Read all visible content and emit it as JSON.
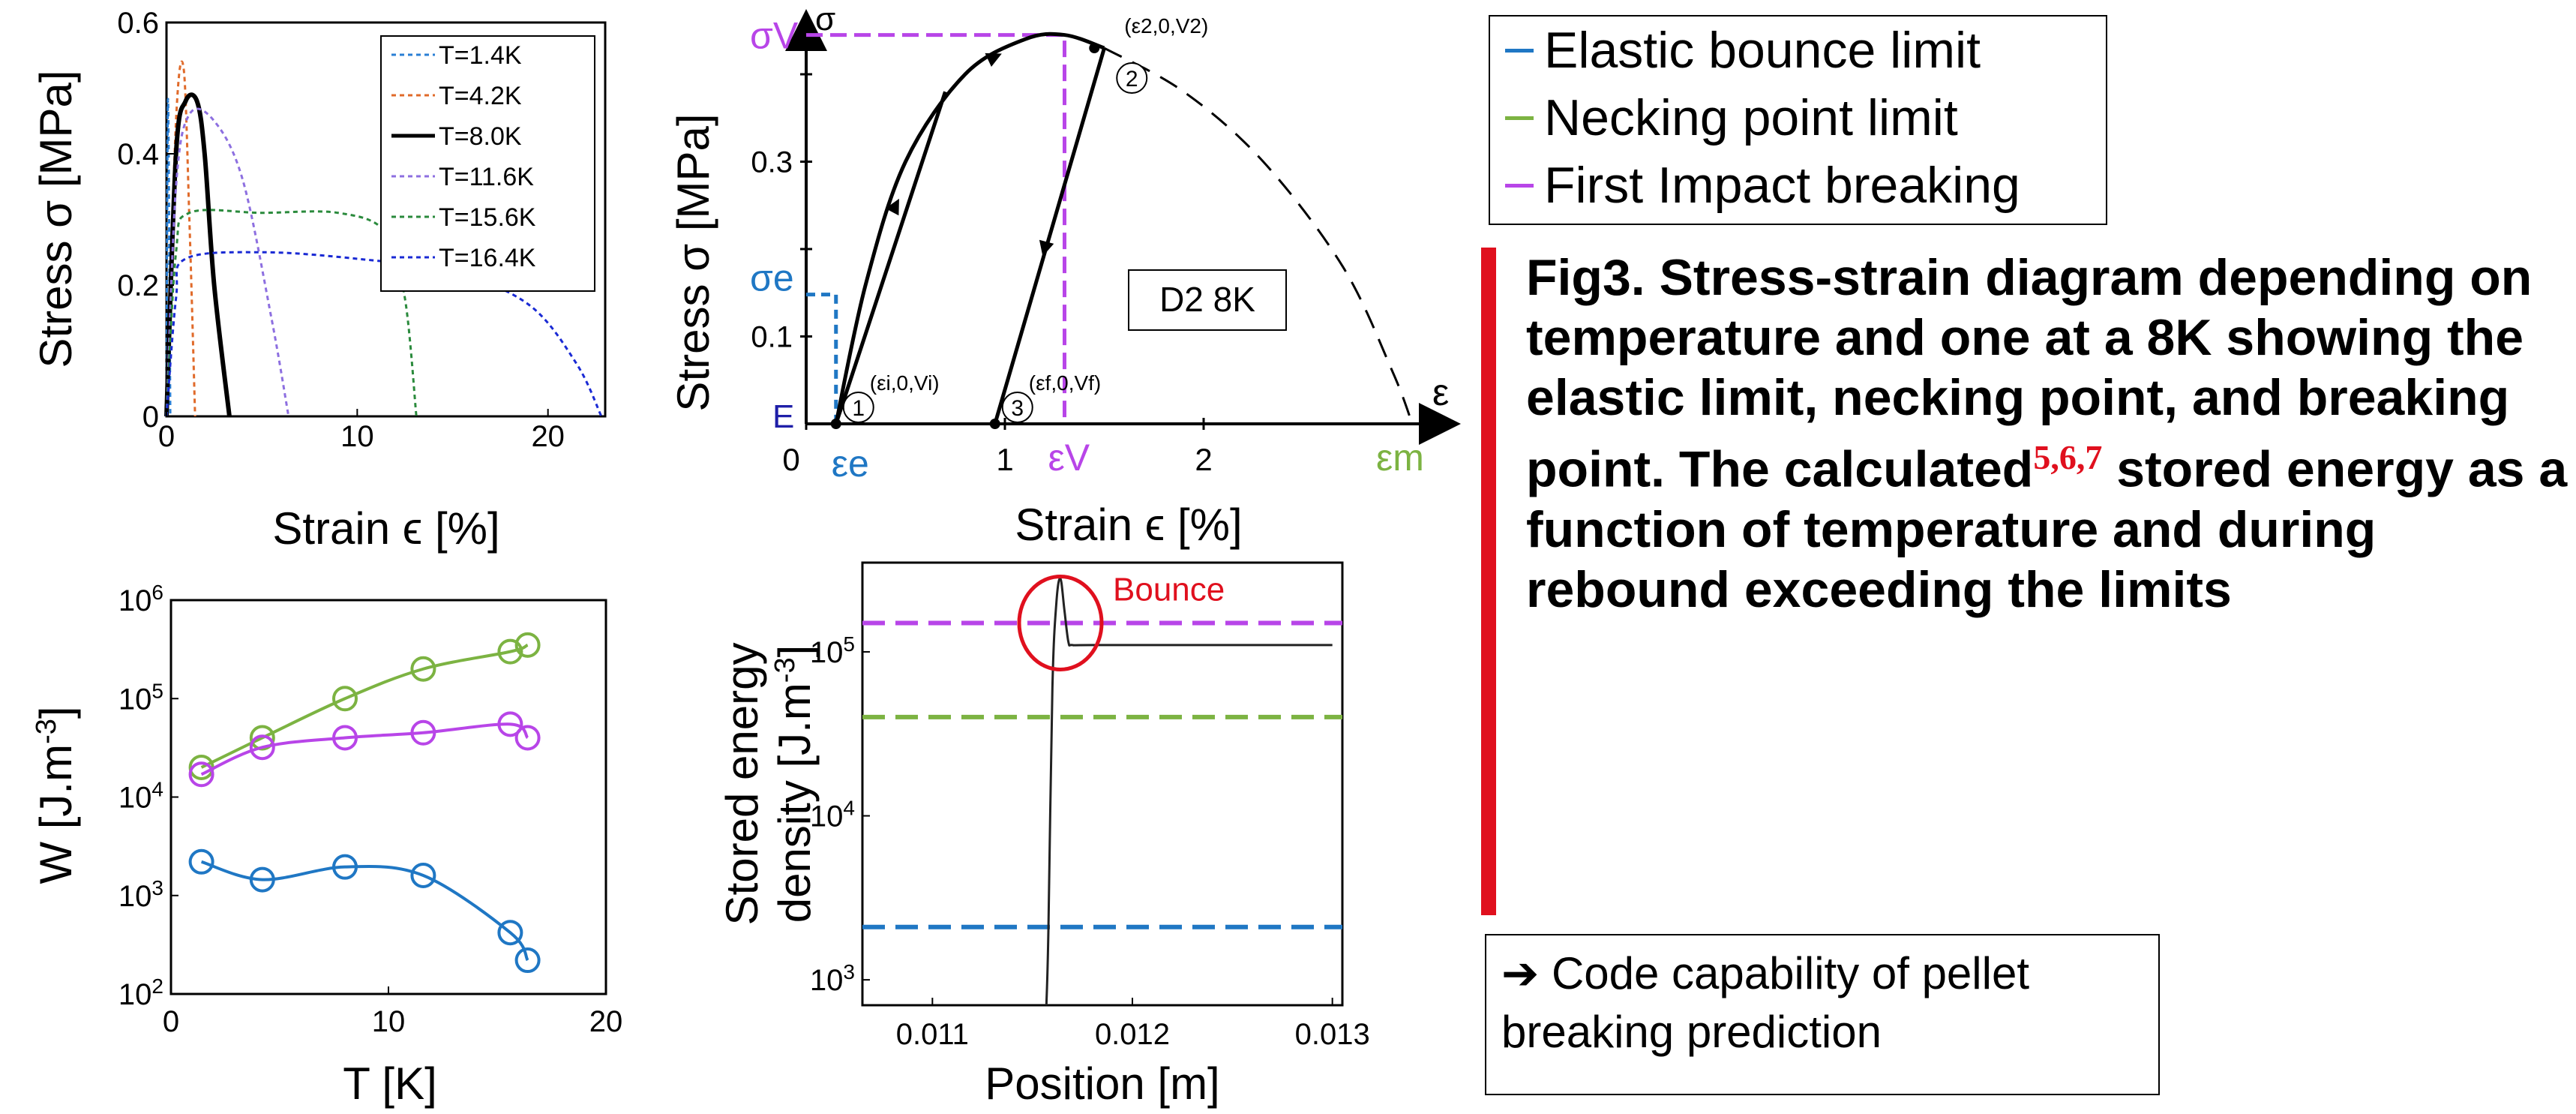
{
  "chart_data": [
    {
      "id": "stress_strain_temperature",
      "type": "line",
      "xlabel": "Strain ϵ [%]",
      "ylabel": "Stress σ [MPa]",
      "xlim": [
        0,
        23
      ],
      "ylim": [
        0,
        0.6
      ],
      "xticks": [
        "0",
        "10",
        "20"
      ],
      "yticks": [
        "0",
        "0.2",
        "0.4",
        "0.6"
      ],
      "legend_position": "top-right",
      "series": [
        {
          "name": "T=1.4K",
          "color": "#2a7fd4",
          "style": "dotted",
          "x": [
            0,
            0.05,
            0.1,
            0.2
          ],
          "y": [
            0,
            0.4,
            0.45,
            0
          ]
        },
        {
          "name": "T=4.2K",
          "color": "#e06a2a",
          "style": "dotted",
          "x": [
            0,
            0.5,
            0.9,
            1.2,
            1.5
          ],
          "y": [
            0,
            0.45,
            0.53,
            0.3,
            0
          ]
        },
        {
          "name": "T=8.0K",
          "color": "#000000",
          "style": "solid",
          "x": [
            0,
            0.5,
            1.0,
            1.6,
            2.0,
            2.5,
            3.3
          ],
          "y": [
            0,
            0.4,
            0.48,
            0.48,
            0.4,
            0.2,
            0
          ]
        },
        {
          "name": "T=11.6K",
          "color": "#8d6fe0",
          "style": "dotted",
          "x": [
            0,
            0.5,
            1.2,
            2.5,
            4.0,
            5.5,
            6.4
          ],
          "y": [
            0,
            0.35,
            0.46,
            0.45,
            0.36,
            0.15,
            0
          ]
        },
        {
          "name": "T=15.6K",
          "color": "#2a8a3c",
          "style": "dotted",
          "x": [
            0,
            0.5,
            1.2,
            5.0,
            9.0,
            11.5,
            12.5,
            13.1
          ],
          "y": [
            0,
            0.25,
            0.31,
            0.31,
            0.31,
            0.28,
            0.18,
            0
          ]
        },
        {
          "name": "T=16.4K",
          "color": "#1a2ad4",
          "style": "dotted",
          "x": [
            0,
            0.5,
            1.0,
            5.0,
            10.0,
            15.0,
            19.0,
            21.5,
            22.8
          ],
          "y": [
            0,
            0.18,
            0.24,
            0.25,
            0.24,
            0.22,
            0.17,
            0.08,
            0
          ]
        }
      ]
    },
    {
      "id": "stress_strain_d2_8k",
      "type": "line",
      "annotation_box": "D2 8K",
      "xlabel": "Strain ϵ [%]",
      "ylabel": "Stress σ [MPa]",
      "xlim": [
        0,
        3.2
      ],
      "ylim": [
        0,
        0.46
      ],
      "xticks": [
        "0",
        "1",
        "2"
      ],
      "yticks": [
        "0.1",
        "0.3"
      ],
      "y_axis_name": "σ",
      "x_axis_name": "ε",
      "labels": {
        "sigma_v": "σV",
        "sigma_e": "σe",
        "E": "E",
        "eps_e": "εe",
        "eps_v": "εV",
        "eps_m": "εm",
        "origin": "0"
      },
      "points": [
        {
          "label": "(ε2,0,V2)",
          "id": "2",
          "x": 1.45,
          "y": 0.43
        },
        {
          "label": "(εi,0,Vi)",
          "id": "1",
          "x": 0.15,
          "y": 0.0
        },
        {
          "label": "(εf,0,Vf)",
          "id": "3",
          "x": 0.95,
          "y": 0.0
        }
      ],
      "envelope_curve": {
        "x": [
          0.15,
          0.3,
          0.5,
          0.8,
          1.1,
          1.3,
          1.5
        ],
        "y": [
          0.0,
          0.16,
          0.3,
          0.4,
          0.44,
          0.445,
          0.43
        ]
      },
      "loading_line": {
        "x": [
          0.15,
          0.7
        ],
        "y": [
          0.0,
          0.38
        ]
      },
      "unloading_line": {
        "x": [
          1.5,
          0.95
        ],
        "y": [
          0.43,
          0.0
        ]
      },
      "extrapolation_dashed": {
        "x": [
          1.5,
          1.9,
          2.3,
          2.7,
          2.95,
          3.05
        ],
        "y": [
          0.43,
          0.38,
          0.3,
          0.18,
          0.06,
          0.0
        ]
      },
      "sigma_v": 0.445,
      "sigma_e": 0.148,
      "eps_e": 0.15,
      "eps_v": 1.3
    },
    {
      "id": "W_vs_T",
      "type": "line",
      "xlabel": "T [K]",
      "ylabel": "W [J.m-3]",
      "xlim": [
        0,
        20
      ],
      "ylim": [
        100,
        1000000
      ],
      "log_y": true,
      "xticks": [
        "0",
        "10",
        "20"
      ],
      "yticks": [
        "10",
        "10",
        "10",
        "10",
        "10"
      ],
      "ytick_exponents": [
        "2",
        "3",
        "4",
        "5",
        "6"
      ],
      "series": [
        {
          "color": "#7cb342",
          "x": [
            1.4,
            4.2,
            8.0,
            11.6,
            15.6,
            16.4
          ],
          "y": [
            20000,
            40000,
            100000,
            200000,
            300000,
            350000
          ]
        },
        {
          "color": "#b845e8",
          "x": [
            1.4,
            4.2,
            8.0,
            11.6,
            15.6,
            16.4
          ],
          "y": [
            17000,
            32000,
            40000,
            45000,
            55000,
            40000
          ]
        },
        {
          "color": "#1f77c4",
          "x": [
            1.4,
            4.2,
            8.0,
            11.6,
            15.6,
            16.4
          ],
          "y": [
            2200,
            1450,
            1950,
            1600,
            420,
            220
          ]
        }
      ]
    },
    {
      "id": "energy_vs_position",
      "type": "line",
      "xlabel": "Position [m]",
      "ylabel_line1": "Stored energy",
      "ylabel_line2": "density [J.m-3]",
      "xlim": [
        0.01065,
        0.01305
      ],
      "ylim": [
        700,
        350000
      ],
      "log_y": true,
      "xticks": [
        "0.011",
        "0.012",
        "0.013"
      ],
      "yticks": [
        "10",
        "10",
        "10"
      ],
      "ytick_exponents": [
        "3",
        "4",
        "5"
      ],
      "annotation": "Bounce",
      "thresholds": [
        {
          "color": "#b845e8",
          "y": 150000
        },
        {
          "color": "#7cb342",
          "y": 40000
        },
        {
          "color": "#1f77c4",
          "y": 2100
        }
      ],
      "curve": {
        "x": [
          0.01157,
          0.01158,
          0.0116,
          0.01162,
          0.01164,
          0.01166,
          0.01168,
          0.0117,
          0.0118,
          0.0125,
          0.013
        ],
        "y": [
          700,
          2000,
          60000,
          200000,
          280000,
          180000,
          115000,
          110000,
          110000,
          110000,
          110000
        ]
      }
    }
  ],
  "legend": {
    "items": [
      {
        "label": "Elastic bounce limit",
        "color": "#1f77c4"
      },
      {
        "label": "Necking point limit",
        "color": "#7cb342"
      },
      {
        "label": "First Impact breaking",
        "color": "#b845e8"
      }
    ]
  },
  "caption": {
    "text_before_ref": "Fig3. Stress-strain diagram depending on temperature and one at a 8K showing the elastic limit, necking point, and breaking point. The calculated",
    "ref": "5,6,7",
    "text_after_ref": " stored energy as a function of temperature and during rebound exceeding the limits"
  },
  "note": {
    "line1": "➔ Code capability of pellet",
    "line2": "breaking prediction"
  }
}
